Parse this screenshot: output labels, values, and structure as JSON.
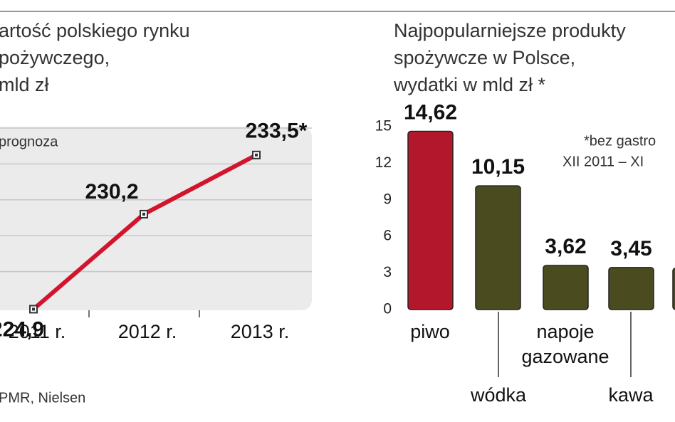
{
  "chart_data": [
    {
      "type": "line",
      "title": [
        "artość polskiego rynku",
        "pożywczego,",
        "mld zł"
      ],
      "note": "prognoza",
      "source": "PMR, Nielsen",
      "categories": [
        "2011 r.",
        "2012 r.",
        "2013 r."
      ],
      "values": [
        224.9,
        230.2,
        233.5
      ],
      "value_labels": [
        "224,9",
        "230,2",
        "233,5*"
      ],
      "color": "#d2142d",
      "ylim": [
        224.8,
        235
      ],
      "yticks": [
        227,
        229,
        231,
        233,
        235
      ],
      "show_tick_labels": false,
      "grid": true
    },
    {
      "type": "bar",
      "title": [
        "Najpopularniejsze produkty",
        "spożywcze w Polsce,",
        "wydatki w mld zł *"
      ],
      "note": [
        "*bez gastro",
        "XII 2011 – XI"
      ],
      "categories": [
        "piwo",
        "wódka",
        "napoje gazowane",
        "kawa",
        null
      ],
      "values": [
        14.62,
        10.15,
        3.62,
        3.45,
        3.4
      ],
      "value_labels": [
        "14,62",
        "10,15",
        "3,62",
        "3,45",
        null
      ],
      "colors": [
        "#b3172b",
        "#4a4c1f",
        "#4a4c1f",
        "#4a4c1f",
        "#4a4c1f"
      ],
      "ylim": [
        0,
        15
      ],
      "yticks": [
        0,
        3,
        6,
        9,
        12,
        15
      ]
    }
  ]
}
